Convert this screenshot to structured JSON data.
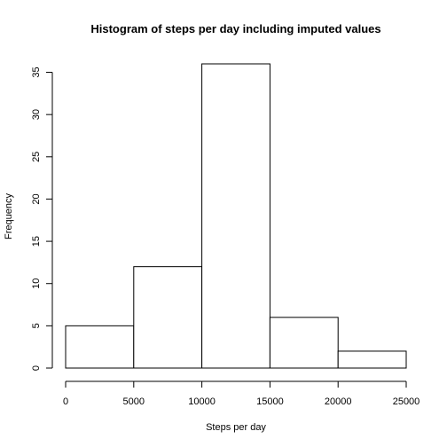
{
  "chart_data": {
    "type": "bar",
    "title": "Histogram of steps per day including imputed values",
    "xlabel": "Steps per day",
    "ylabel": "Frequency",
    "bins": [
      {
        "start": 0,
        "end": 5000,
        "count": 5
      },
      {
        "start": 5000,
        "end": 10000,
        "count": 12
      },
      {
        "start": 10000,
        "end": 15000,
        "count": 36
      },
      {
        "start": 15000,
        "end": 20000,
        "count": 6
      },
      {
        "start": 20000,
        "end": 25000,
        "count": 2
      }
    ],
    "xlim": [
      0,
      25000
    ],
    "ylim": [
      0,
      36
    ],
    "x_ticks": [
      0,
      5000,
      10000,
      15000,
      20000,
      25000
    ],
    "y_ticks": [
      0,
      5,
      10,
      15,
      20,
      25,
      30,
      35
    ],
    "grid": false,
    "bar_fill": "#ffffff",
    "bar_stroke": "#000000"
  }
}
